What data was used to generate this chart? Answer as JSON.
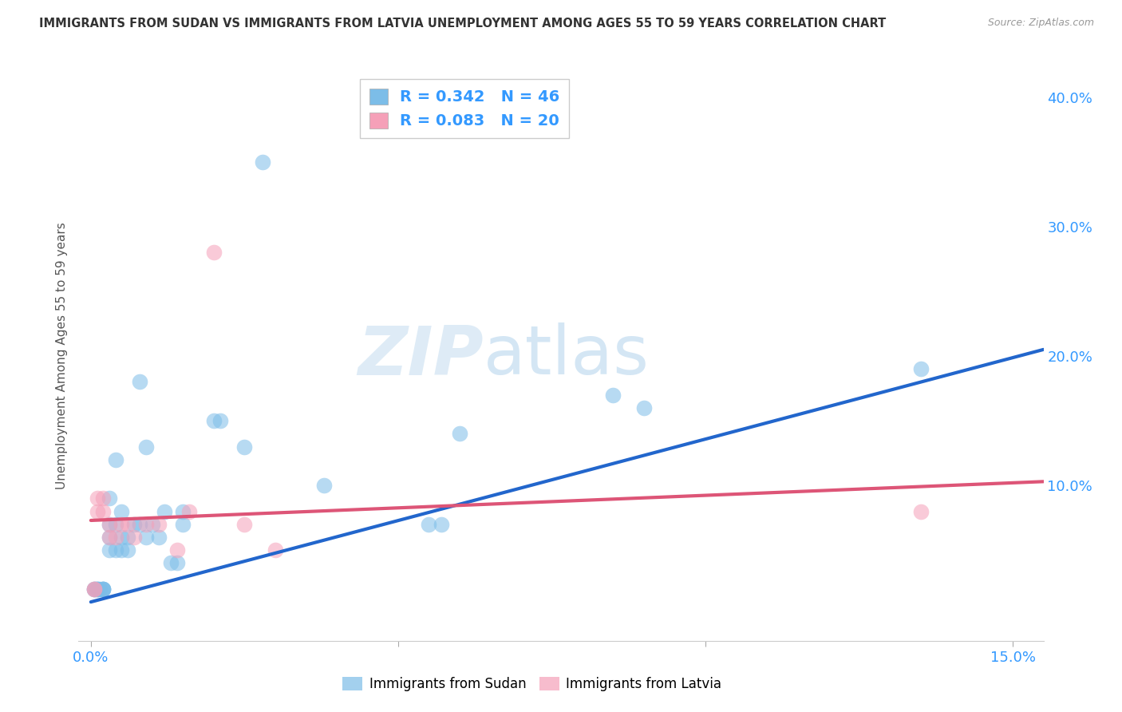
{
  "title": "IMMIGRANTS FROM SUDAN VS IMMIGRANTS FROM LATVIA UNEMPLOYMENT AMONG AGES 55 TO 59 YEARS CORRELATION CHART",
  "source": "Source: ZipAtlas.com",
  "ylabel": "Unemployment Among Ages 55 to 59 years",
  "xlim": [
    -0.002,
    0.155
  ],
  "ylim": [
    -0.02,
    0.42
  ],
  "xticks": [
    0.0,
    0.05,
    0.1,
    0.15
  ],
  "xticklabels": [
    "0.0%",
    "",
    "",
    "15.0%"
  ],
  "yticks_right": [
    0.0,
    0.1,
    0.2,
    0.3,
    0.4
  ],
  "ytickslabels_right": [
    "",
    "10.0%",
    "20.0%",
    "30.0%",
    "40.0%"
  ],
  "sudan_R": 0.342,
  "sudan_N": 46,
  "latvia_R": 0.083,
  "latvia_N": 20,
  "sudan_color": "#7cbde8",
  "latvia_color": "#f5a0b8",
  "sudan_line_color": "#2266cc",
  "latvia_line_color": "#dd5577",
  "watermark_zip": "ZIP",
  "watermark_atlas": "atlas",
  "background_color": "#ffffff",
  "grid_color": "#cccccc",
  "sudan_x": [
    0.0005,
    0.0005,
    0.0008,
    0.001,
    0.001,
    0.001,
    0.0015,
    0.002,
    0.002,
    0.002,
    0.002,
    0.003,
    0.003,
    0.003,
    0.003,
    0.004,
    0.004,
    0.004,
    0.005,
    0.005,
    0.005,
    0.006,
    0.006,
    0.007,
    0.008,
    0.008,
    0.009,
    0.009,
    0.01,
    0.011,
    0.012,
    0.013,
    0.014,
    0.015,
    0.015,
    0.02,
    0.021,
    0.025,
    0.028,
    0.038,
    0.055,
    0.057,
    0.06,
    0.085,
    0.09,
    0.135
  ],
  "sudan_y": [
    0.02,
    0.02,
    0.02,
    0.02,
    0.02,
    0.02,
    0.02,
    0.02,
    0.02,
    0.02,
    0.02,
    0.05,
    0.06,
    0.07,
    0.09,
    0.05,
    0.07,
    0.12,
    0.05,
    0.06,
    0.08,
    0.05,
    0.06,
    0.07,
    0.07,
    0.18,
    0.06,
    0.13,
    0.07,
    0.06,
    0.08,
    0.04,
    0.04,
    0.07,
    0.08,
    0.15,
    0.15,
    0.13,
    0.35,
    0.1,
    0.07,
    0.07,
    0.14,
    0.17,
    0.16,
    0.19
  ],
  "latvia_x": [
    0.0005,
    0.0005,
    0.001,
    0.001,
    0.002,
    0.002,
    0.003,
    0.003,
    0.004,
    0.005,
    0.006,
    0.007,
    0.009,
    0.011,
    0.014,
    0.016,
    0.02,
    0.025,
    0.03,
    0.135
  ],
  "latvia_y": [
    0.02,
    0.02,
    0.08,
    0.09,
    0.08,
    0.09,
    0.06,
    0.07,
    0.06,
    0.07,
    0.07,
    0.06,
    0.07,
    0.07,
    0.05,
    0.08,
    0.28,
    0.07,
    0.05,
    0.08
  ],
  "sudan_trend_x": [
    0.0,
    0.155
  ],
  "sudan_trend_y": [
    0.01,
    0.205
  ],
  "latvia_trend_x": [
    0.0,
    0.155
  ],
  "latvia_trend_y": [
    0.073,
    0.103
  ]
}
